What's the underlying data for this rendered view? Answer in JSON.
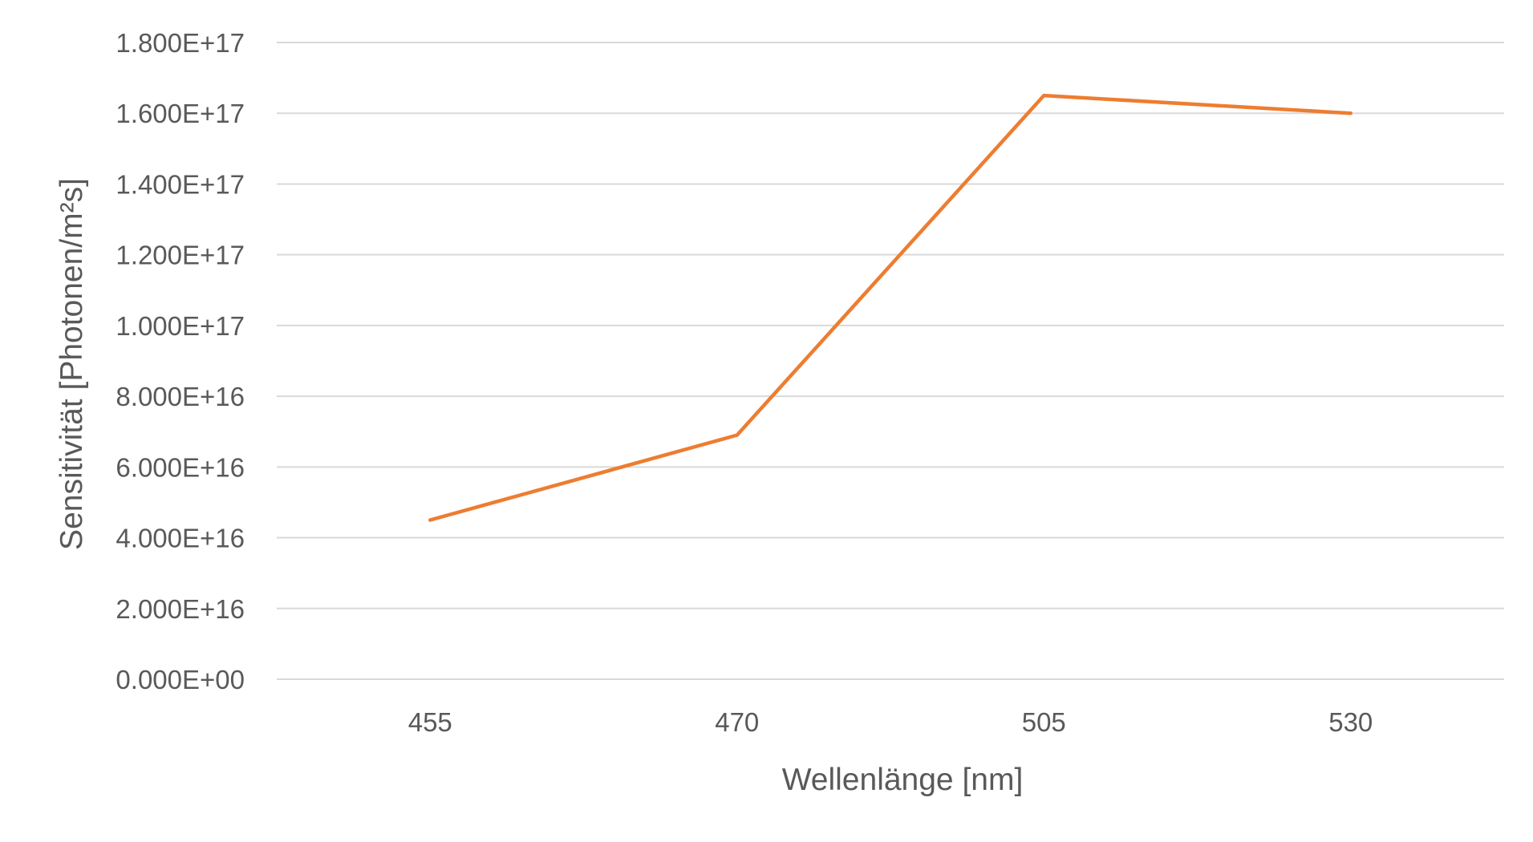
{
  "chart_data": {
    "type": "line",
    "categories": [
      "455",
      "470",
      "505",
      "530"
    ],
    "series": [
      {
        "values": [
          4.5e+16,
          6.9e+16,
          1.65e+17,
          1.6e+17
        ]
      }
    ],
    "xlabel": "Wellenlänge [nm]",
    "ylabel": "Sensitivität [Photonen/m²s]",
    "ylim": [
      0,
      1.8e+17
    ],
    "y_ticks": [
      {
        "value": 0,
        "label": "0.000E+00"
      },
      {
        "value": 2e+16,
        "label": "2.000E+16"
      },
      {
        "value": 4e+16,
        "label": "4.000E+16"
      },
      {
        "value": 6e+16,
        "label": "6.000E+16"
      },
      {
        "value": 8e+16,
        "label": "8.000E+16"
      },
      {
        "value": 1e+17,
        "label": "1.000E+17"
      },
      {
        "value": 1.2e+17,
        "label": "1.200E+17"
      },
      {
        "value": 1.4e+17,
        "label": "1.400E+17"
      },
      {
        "value": 1.6e+17,
        "label": "1.600E+17"
      },
      {
        "value": 1.8e+17,
        "label": "1.800E+17"
      }
    ],
    "grid": true,
    "legend": "none",
    "colors": {
      "series": "#ED7D31",
      "grid": "#D9D9D9",
      "text": "#595959"
    }
  }
}
